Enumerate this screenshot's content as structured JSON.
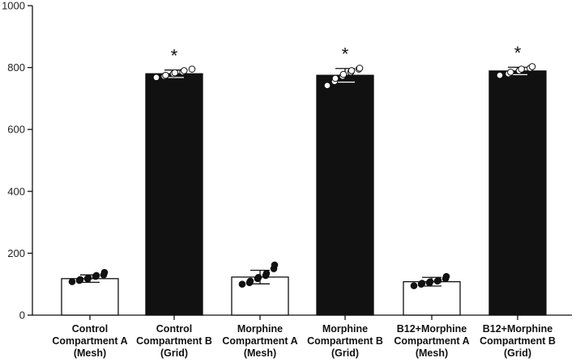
{
  "chart_data": {
    "type": "bar",
    "title": "",
    "xlabel": "",
    "ylabel": "",
    "ylim": [
      0,
      1000
    ],
    "yticks": [
      0,
      200,
      400,
      600,
      800,
      1000
    ],
    "grid": false,
    "categories": [
      {
        "lines": [
          "Control",
          "Compartment A",
          "(Mesh)"
        ],
        "fill": "white",
        "value": 118,
        "error": 12,
        "significance": "",
        "points": [
          108,
          112,
          115,
          118,
          120,
          125,
          128,
          130,
          138
        ]
      },
      {
        "lines": [
          "Control",
          "Compartment B",
          "(Grid)"
        ],
        "fill": "black",
        "value": 780,
        "error": 12,
        "significance": "*",
        "points": [
          768,
          772,
          775,
          780,
          783,
          786,
          790,
          795
        ]
      },
      {
        "lines": [
          "Morphine",
          "Compartment A",
          "(Mesh)"
        ],
        "fill": "white",
        "value": 123,
        "error": 22,
        "significance": "",
        "points": [
          100,
          105,
          110,
          118,
          122,
          128,
          135,
          150,
          162
        ]
      },
      {
        "lines": [
          "Morphine",
          "Compartment B",
          "(Grid)"
        ],
        "fill": "black",
        "value": 775,
        "error": 22,
        "significance": "*",
        "points": [
          742,
          755,
          765,
          772,
          778,
          785,
          790,
          795,
          798
        ]
      },
      {
        "lines": [
          "B12+Morphine",
          "Compartment A",
          "(Mesh)"
        ],
        "fill": "white",
        "value": 108,
        "error": 14,
        "significance": "",
        "points": [
          95,
          100,
          103,
          105,
          108,
          110,
          112,
          118,
          125
        ]
      },
      {
        "lines": [
          "B12+Morphine",
          "Compartment B",
          "(Grid)"
        ],
        "fill": "black",
        "value": 789,
        "error": 12,
        "significance": "*",
        "points": [
          775,
          780,
          785,
          790,
          795,
          798,
          803
        ]
      }
    ],
    "colors": {
      "open_bar": "#ffffff",
      "filled_bar": "#111111",
      "outline": "#111111"
    }
  }
}
